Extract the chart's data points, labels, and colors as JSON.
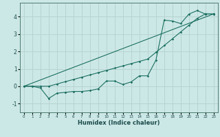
{
  "xlabel": "Humidex (Indice chaleur)",
  "bg_color": "#cce8e6",
  "grid_color": "#b8d4d2",
  "line_color": "#1a6e60",
  "line1_x": [
    0,
    1,
    2,
    3,
    4,
    5,
    6,
    7,
    8,
    9,
    10,
    11,
    12,
    13,
    14,
    15,
    16,
    17,
    18,
    19,
    20,
    21,
    22,
    23
  ],
  "line1_y": [
    0.0,
    0.0,
    -0.1,
    -0.7,
    -0.4,
    -0.35,
    -0.3,
    -0.3,
    -0.25,
    -0.15,
    0.3,
    0.3,
    0.1,
    0.25,
    0.6,
    0.6,
    1.5,
    3.8,
    3.75,
    3.6,
    4.15,
    4.35,
    4.15,
    4.15
  ],
  "line2_x": [
    0,
    1,
    2,
    3,
    4,
    5,
    6,
    7,
    8,
    9,
    10,
    11,
    12,
    13,
    14,
    15,
    16,
    17,
    18,
    19,
    20,
    21,
    22,
    23
  ],
  "line2_y": [
    0.0,
    0.0,
    0.0,
    0.0,
    0.13,
    0.26,
    0.39,
    0.52,
    0.65,
    0.78,
    0.91,
    1.04,
    1.17,
    1.3,
    1.43,
    1.56,
    1.95,
    2.34,
    2.73,
    3.12,
    3.51,
    3.9,
    4.16,
    4.16
  ],
  "line3_x": [
    0,
    23
  ],
  "line3_y": [
    0.0,
    4.16
  ],
  "ylim": [
    -1.5,
    4.8
  ],
  "xlim": [
    -0.5,
    23.5
  ],
  "yticks": [
    -1,
    0,
    1,
    2,
    3,
    4
  ],
  "xticks": [
    0,
    1,
    2,
    3,
    4,
    5,
    6,
    7,
    8,
    9,
    10,
    11,
    12,
    13,
    14,
    15,
    16,
    17,
    18,
    19,
    20,
    21,
    22,
    23
  ]
}
